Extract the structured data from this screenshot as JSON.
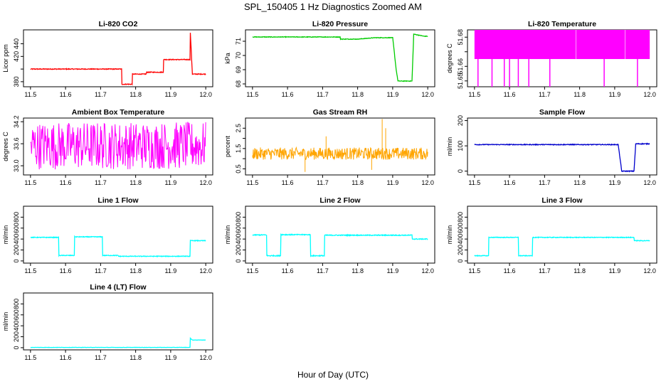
{
  "figure": {
    "title": "SPL_150405 1 Hz Diagnostics Zoomed AM",
    "xlabel": "Hour of Day (UTC)"
  },
  "chart_data": [
    {
      "id": "co2",
      "type": "line",
      "title": "Li-820 CO2",
      "ylabel": "Licor ppm",
      "xlim": [
        11.48,
        12.02
      ],
      "ylim": [
        372,
        462
      ],
      "xticks": [
        11.5,
        11.6,
        11.7,
        11.8,
        11.9,
        12.0
      ],
      "yticks": [
        380,
        400,
        420,
        440
      ],
      "ytick_labels": [
        "380",
        "",
        "420",
        "440"
      ],
      "color": "#ff0000",
      "noise": 0.6,
      "series": [
        {
          "x": [
            11.5,
            11.76,
            11.761,
            11.79,
            11.791,
            11.83,
            11.831,
            11.879,
            11.88,
            11.955,
            11.956,
            11.962,
            11.963,
            12.0
          ],
          "y": [
            400,
            400,
            376,
            376,
            392,
            392,
            395,
            395,
            415,
            415,
            457,
            392,
            392,
            392
          ]
        }
      ]
    },
    {
      "id": "pressure",
      "type": "line",
      "title": "Li-820 Pressure",
      "ylabel": "kPa",
      "xlim": [
        11.48,
        12.02
      ],
      "ylim": [
        67.8,
        71.8
      ],
      "xticks": [
        11.5,
        11.6,
        11.7,
        11.8,
        11.9,
        12.0
      ],
      "yticks": [
        68,
        69,
        70,
        71
      ],
      "ytick_labels": [
        "68",
        "69",
        "70",
        "71"
      ],
      "color": "#00cc00",
      "noise": 0.02,
      "series": [
        {
          "x": [
            11.5,
            11.75,
            11.751,
            11.8,
            11.85,
            11.9,
            11.91,
            11.915,
            11.955,
            11.96,
            11.97,
            11.99,
            12.0
          ],
          "y": [
            71.3,
            71.3,
            71.15,
            71.15,
            71.25,
            71.25,
            69.0,
            68.2,
            68.2,
            71.5,
            71.45,
            71.35,
            71.35
          ]
        }
      ]
    },
    {
      "id": "li820temp",
      "type": "band",
      "title": "Li-820 Temperature",
      "ylabel": "degrees C",
      "xlim": [
        11.48,
        12.02
      ],
      "ylim": [
        51.646,
        51.685
      ],
      "xticks": [
        11.5,
        11.6,
        11.7,
        11.8,
        11.9,
        12.0
      ],
      "yticks": [
        51.65,
        51.66,
        51.67,
        51.68
      ],
      "ytick_labels": [
        "51.65",
        "51.66",
        "",
        "51.68"
      ],
      "color": "#ff00ff",
      "series": [
        {
          "x": [
            11.5,
            12.0
          ],
          "low": [
            51.665,
            51.665
          ],
          "high": [
            51.685,
            51.685
          ],
          "spikes_x": [
            11.51,
            11.55,
            11.585,
            11.6,
            11.625,
            11.655,
            11.715,
            11.87,
            11.965
          ],
          "spike_low": 51.646
        }
      ]
    },
    {
      "id": "ambient",
      "type": "noise",
      "title": "Ambient Box Temperature",
      "ylabel": "degrees C",
      "xlim": [
        11.48,
        12.02
      ],
      "ylim": [
        32.75,
        34.3
      ],
      "xticks": [
        11.5,
        11.6,
        11.7,
        11.8,
        11.9,
        12.0
      ],
      "yticks": [
        33.0,
        33.6,
        34.2
      ],
      "ytick_labels": [
        "33.0",
        "33.6",
        "34.2"
      ],
      "color": "#ff00ff",
      "series": [
        {
          "x": [
            11.5,
            12.0
          ],
          "low": [
            32.9,
            32.9
          ],
          "high": [
            34.2,
            34.2
          ],
          "density": 340
        }
      ]
    },
    {
      "id": "rh",
      "type": "noise",
      "title": "Gas Stream RH",
      "ylabel": "percent",
      "xlim": [
        11.48,
        12.02
      ],
      "ylim": [
        0.2,
        3.0
      ],
      "xticks": [
        11.5,
        11.6,
        11.7,
        11.8,
        11.9,
        12.0
      ],
      "yticks": [
        0.5,
        1.0,
        1.5,
        2.0,
        2.5
      ],
      "ytick_labels": [
        "0.5",
        "",
        "1.5",
        "",
        "2.5"
      ],
      "color": "#ffa500",
      "series": [
        {
          "x": [
            11.5,
            12.0
          ],
          "low": [
            0.95,
            0.95
          ],
          "high": [
            1.55,
            1.55
          ],
          "density": 420,
          "outliers": [
            [
              11.65,
              0.35
            ],
            [
              11.87,
              2.95
            ],
            [
              11.88,
              2.5
            ],
            [
              11.84,
              0.45
            ],
            [
              11.71,
              2.1
            ]
          ]
        }
      ]
    },
    {
      "id": "sampleflow",
      "type": "line",
      "title": "Sample Flow",
      "ylabel": "ml/min",
      "xlim": [
        11.48,
        12.02
      ],
      "ylim": [
        -15,
        210
      ],
      "xticks": [
        11.5,
        11.6,
        11.7,
        11.8,
        11.9,
        12.0
      ],
      "yticks": [
        0,
        100,
        200
      ],
      "ytick_labels": [
        "0",
        "100",
        "200"
      ],
      "color": "#0000cc",
      "noise": 1.5,
      "series": [
        {
          "x": [
            11.5,
            11.91,
            11.92,
            11.955,
            11.96,
            12.0
          ],
          "y": [
            105,
            105,
            0,
            0,
            108,
            108
          ]
        }
      ]
    },
    {
      "id": "line1",
      "type": "line",
      "title": "Line 1 Flow",
      "ylabel": "ml/min",
      "xlim": [
        11.48,
        12.02
      ],
      "ylim": [
        -40,
        1000
      ],
      "xticks": [
        11.5,
        11.6,
        11.7,
        11.8,
        11.9,
        12.0
      ],
      "yticks": [
        0,
        200,
        400,
        600,
        800
      ],
      "ytick_labels": [
        "0",
        "200",
        "400",
        "600",
        "800"
      ],
      "color": "#00ffff",
      "noise": 6,
      "series": [
        {
          "x": [
            11.5,
            11.58,
            11.581,
            11.625,
            11.626,
            11.705,
            11.706,
            11.75,
            11.751,
            11.955,
            11.956,
            12.0
          ],
          "y": [
            430,
            430,
            100,
            100,
            440,
            440,
            100,
            100,
            85,
            85,
            370,
            370
          ]
        }
      ]
    },
    {
      "id": "line2",
      "type": "line",
      "title": "Line 2 Flow",
      "ylabel": "ml/min",
      "xlim": [
        11.48,
        12.02
      ],
      "ylim": [
        -40,
        1000
      ],
      "xticks": [
        11.5,
        11.6,
        11.7,
        11.8,
        11.9,
        12.0
      ],
      "yticks": [
        0,
        200,
        400,
        600,
        800
      ],
      "ytick_labels": [
        "0",
        "200",
        "400",
        "600",
        "800"
      ],
      "color": "#00ffff",
      "noise": 8,
      "series": [
        {
          "x": [
            11.5,
            11.54,
            11.541,
            11.58,
            11.581,
            11.665,
            11.666,
            11.705,
            11.706,
            11.955,
            11.956,
            12.0
          ],
          "y": [
            475,
            475,
            95,
            95,
            480,
            480,
            95,
            95,
            470,
            470,
            400,
            400
          ]
        }
      ]
    },
    {
      "id": "line3",
      "type": "line",
      "title": "Line 3 Flow",
      "ylabel": "ml/min",
      "xlim": [
        11.48,
        12.02
      ],
      "ylim": [
        -40,
        1000
      ],
      "xticks": [
        11.5,
        11.6,
        11.7,
        11.8,
        11.9,
        12.0
      ],
      "yticks": [
        0,
        200,
        400,
        600,
        800
      ],
      "ytick_labels": [
        "0",
        "200",
        "400",
        "600",
        "800"
      ],
      "color": "#00ffff",
      "noise": 6,
      "series": [
        {
          "x": [
            11.5,
            11.54,
            11.541,
            11.625,
            11.626,
            11.665,
            11.666,
            11.955,
            11.956,
            12.0
          ],
          "y": [
            95,
            95,
            430,
            430,
            95,
            95,
            430,
            430,
            370,
            370
          ]
        }
      ]
    },
    {
      "id": "line4",
      "type": "line",
      "title": "Line 4 (LT) Flow",
      "ylabel": "ml/min",
      "xlim": [
        11.48,
        12.02
      ],
      "ylim": [
        -40,
        1000
      ],
      "xticks": [
        11.5,
        11.6,
        11.7,
        11.8,
        11.9,
        12.0
      ],
      "yticks": [
        0,
        200,
        400,
        600,
        800
      ],
      "ytick_labels": [
        "0",
        "200",
        "400",
        "600",
        "800"
      ],
      "color": "#00ffff",
      "noise": 2,
      "series": [
        {
          "x": [
            11.5,
            11.955,
            11.956,
            11.962,
            12.0
          ],
          "y": [
            5,
            5,
            170,
            140,
            140
          ]
        }
      ]
    }
  ]
}
